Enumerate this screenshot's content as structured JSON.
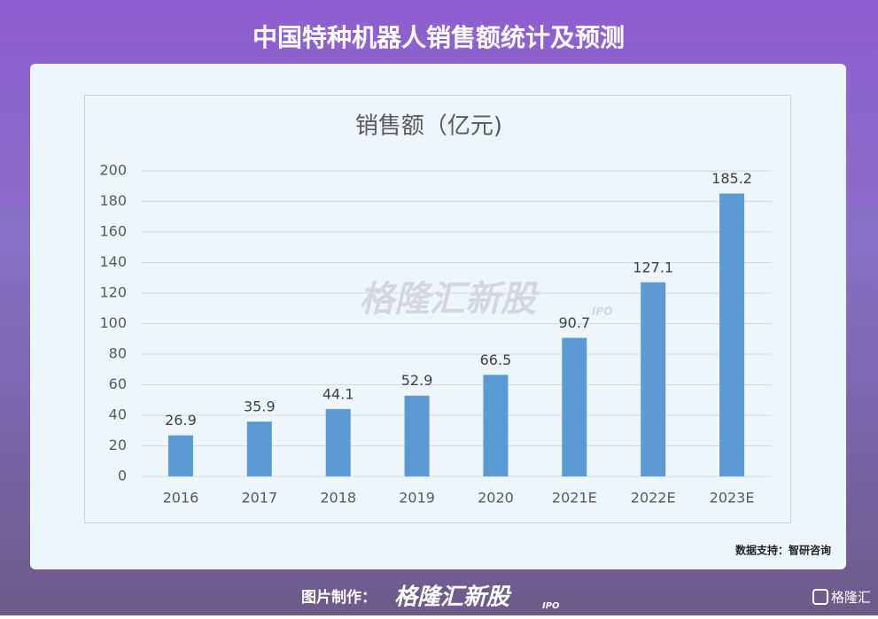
{
  "header": {
    "title": "中国特种机器人销售额统计及预测"
  },
  "chart_data": {
    "type": "bar",
    "title": "销售额（亿元)",
    "categories": [
      "2016",
      "2017",
      "2018",
      "2019",
      "2020",
      "2021E",
      "2022E",
      "2023E"
    ],
    "values": [
      26.9,
      35.9,
      44.1,
      52.9,
      66.5,
      90.7,
      127.1,
      185.2
    ],
    "color": "#5b9bd5",
    "ylim": [
      0,
      200
    ],
    "yticks": [
      0,
      20,
      40,
      60,
      80,
      100,
      120,
      140,
      160,
      180,
      200
    ],
    "grid": true,
    "watermark": "格隆汇新股",
    "watermark_sub": "IPO"
  },
  "source": "数据支持：智研咨询",
  "footer": {
    "label": "图片制作：",
    "brand": "格隆汇新股",
    "brand_sub": "IPO",
    "logo": "格隆汇"
  }
}
